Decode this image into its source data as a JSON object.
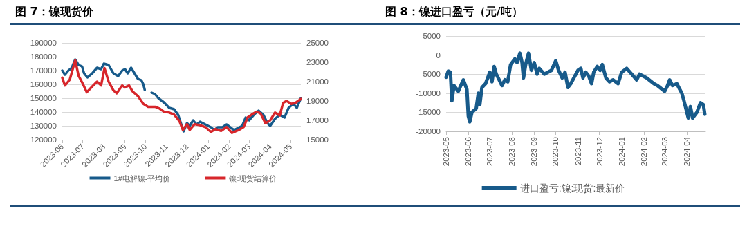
{
  "chart_data": [
    {
      "type": "line",
      "title": "图 7：镍现货价",
      "legend": "bottom",
      "grid": "y",
      "marker": "none",
      "xlim": [
        "2023-06-01",
        "2024-05-16"
      ],
      "xticks": [
        "2023-06",
        "2023-07",
        "2023-08",
        "2023-09",
        "2023-10",
        "2023-11",
        "2023-12",
        "2024-01",
        "2024-02",
        "2024-03",
        "2024-04",
        "2024-05"
      ],
      "ylim": [
        120000,
        190000
      ],
      "yticks": [
        120000,
        130000,
        140000,
        150000,
        160000,
        170000,
        180000,
        190000
      ],
      "y2lim": [
        15000,
        25000
      ],
      "y2ticks": [
        15000,
        17000,
        19000,
        21000,
        23000,
        25000
      ],
      "series": [
        {
          "name": "1#电解镍-平均价",
          "color": "#175a8a",
          "x": [
            "2023-06-01",
            "2023-06-05",
            "2023-06-10",
            "2023-06-15",
            "2023-06-20",
            "2023-06-25",
            "2023-06-30",
            "2023-07-03",
            "2023-07-08",
            "2023-07-15",
            "2023-07-22",
            "2023-07-28",
            "2023-08-01",
            "2023-08-08",
            "2023-08-15",
            "2023-08-22",
            "2023-08-28",
            "2023-09-01",
            "2023-09-05",
            "2023-09-10",
            "2023-09-15",
            "2023-09-20",
            "2023-09-25",
            "2023-09-28",
            "2023-09-30",
            "2023-10-05",
            "2023-10-10",
            "2023-10-15",
            "2023-10-20",
            "2023-10-28",
            "2023-11-05",
            "2023-11-12",
            "2023-11-18",
            "2023-11-22",
            "2023-11-26",
            "2023-12-01",
            "2023-12-05",
            "2023-12-10",
            "2023-12-15",
            "2023-12-20",
            "2023-12-28",
            "2024-01-05",
            "2024-01-10",
            "2024-01-15",
            "2024-01-22",
            "2024-01-28",
            "2024-02-05",
            "2024-02-08",
            "2024-02-20",
            "2024-02-25",
            "2024-03-01",
            "2024-03-08",
            "2024-03-15",
            "2024-03-22",
            "2024-03-28",
            "2024-04-01",
            "2024-04-08",
            "2024-04-15",
            "2024-04-22",
            "2024-04-28",
            "2024-05-05",
            "2024-05-10",
            "2024-05-16"
          ],
          "values": [
            170000,
            167000,
            170000,
            172000,
            178000,
            174000,
            173000,
            168000,
            165000,
            168000,
            172000,
            171000,
            175000,
            174000,
            168000,
            166000,
            170000,
            171000,
            168000,
            172000,
            168000,
            164000,
            163000,
            160000,
            156000,
            null,
            154000,
            153000,
            150000,
            147000,
            143000,
            142000,
            138000,
            132000,
            126000,
            132000,
            130000,
            134000,
            131000,
            133000,
            131000,
            129000,
            127000,
            129000,
            129000,
            131000,
            128000,
            127000,
            130000,
            136000,
            134000,
            138000,
            141000,
            138000,
            132000,
            130000,
            135000,
            138000,
            136000,
            143000,
            146000,
            143000,
            150000
          ]
        },
        {
          "name": "镍:现货结算价",
          "color": "#d7262b",
          "axis": "y2",
          "x": [
            "2023-06-01",
            "2023-06-05",
            "2023-06-12",
            "2023-06-20",
            "2023-06-25",
            "2023-07-01",
            "2023-07-07",
            "2023-07-15",
            "2023-07-22",
            "2023-07-28",
            "2023-08-02",
            "2023-08-08",
            "2023-08-15",
            "2023-08-20",
            "2023-08-28",
            "2023-09-01",
            "2023-09-07",
            "2023-09-12",
            "2023-09-20",
            "2023-09-28",
            "2023-10-05",
            "2023-10-15",
            "2023-10-22",
            "2023-10-28",
            "2023-11-05",
            "2023-11-12",
            "2023-11-20",
            "2023-11-25",
            "2023-12-01",
            "2023-12-05",
            "2023-12-12",
            "2023-12-20",
            "2023-12-28",
            "2024-01-05",
            "2024-01-12",
            "2024-01-20",
            "2024-01-28",
            "2024-02-05",
            "2024-02-15",
            "2024-02-22",
            "2024-02-28",
            "2024-03-05",
            "2024-03-12",
            "2024-03-18",
            "2024-03-25",
            "2024-04-01",
            "2024-04-08",
            "2024-04-15",
            "2024-04-20",
            "2024-04-25",
            "2024-05-02",
            "2024-05-08",
            "2024-05-16"
          ],
          "values": [
            21400,
            20600,
            21200,
            23200,
            21600,
            20800,
            19900,
            20500,
            21000,
            20600,
            22400,
            21000,
            20100,
            19800,
            20600,
            20400,
            20600,
            20000,
            19500,
            18700,
            18400,
            18400,
            18200,
            17900,
            17800,
            17600,
            16900,
            16000,
            16600,
            16000,
            16600,
            16500,
            16300,
            15800,
            16100,
            15900,
            16300,
            15700,
            16000,
            16300,
            17300,
            17600,
            17900,
            17700,
            16700,
            17000,
            17800,
            17500,
            18800,
            19000,
            18700,
            18800,
            19200
          ]
        }
      ]
    },
    {
      "type": "line",
      "title": "图 8：镍进口盈亏（元/吨）",
      "legend": "bottom",
      "grid": "y",
      "marker": "none",
      "xlim": [
        "2023-05-01",
        "2024-04-27"
      ],
      "xticks": [
        "2023-05",
        "2023-06",
        "2023-07",
        "2023-08",
        "2023-09",
        "2023-10",
        "2023-11",
        "2023-12",
        "2024-01",
        "2024-02",
        "2024-03",
        "2024-04"
      ],
      "ylim": [
        -20000,
        5000
      ],
      "yticks": [
        -20000,
        -15000,
        -10000,
        -5000,
        0,
        5000
      ],
      "series": [
        {
          "name": "进口盈亏:镍:现货:最新价",
          "color": "#175a8a",
          "x": [
            "2023-05-01",
            "2023-05-04",
            "2023-05-07",
            "2023-05-09",
            "2023-05-12",
            "2023-05-18",
            "2023-05-25",
            "2023-05-30",
            "2023-06-01",
            "2023-06-03",
            "2023-06-06",
            "2023-06-12",
            "2023-06-15",
            "2023-06-17",
            "2023-06-20",
            "2023-06-25",
            "2023-07-01",
            "2023-07-04",
            "2023-07-07",
            "2023-07-10",
            "2023-07-14",
            "2023-07-18",
            "2023-07-22",
            "2023-07-26",
            "2023-07-30",
            "2023-08-05",
            "2023-08-08",
            "2023-08-12",
            "2023-08-15",
            "2023-08-17",
            "2023-08-20",
            "2023-08-24",
            "2023-08-28",
            "2023-09-01",
            "2023-09-05",
            "2023-09-08",
            "2023-09-15",
            "2023-09-25",
            "2023-10-01",
            "2023-10-05",
            "2023-10-10",
            "2023-10-14",
            "2023-10-18",
            "2023-10-22",
            "2023-11-01",
            "2023-11-05",
            "2023-11-08",
            "2023-11-12",
            "2023-11-16",
            "2023-11-20",
            "2023-11-23",
            "2023-11-28",
            "2023-12-02",
            "2023-12-05",
            "2023-12-10",
            "2023-12-15",
            "2023-12-20",
            "2023-12-27",
            "2024-01-01",
            "2024-01-08",
            "2024-01-15",
            "2024-01-22",
            "2024-01-26",
            "2024-02-05",
            "2024-02-15",
            "2024-02-20",
            "2024-03-01",
            "2024-03-05",
            "2024-03-08",
            "2024-03-12",
            "2024-03-18",
            "2024-03-25",
            "2024-03-28",
            "2024-04-01",
            "2024-04-03",
            "2024-04-06",
            "2024-04-09",
            "2024-04-15",
            "2024-04-20",
            "2024-04-24",
            "2024-04-26"
          ],
          "values": [
            -5800,
            -4200,
            -4500,
            -12000,
            -8000,
            -9500,
            -6500,
            -9000,
            -16000,
            -17500,
            -15000,
            -14000,
            -10000,
            -13000,
            -8500,
            -7500,
            -4500,
            -7000,
            -3000,
            -5000,
            -6500,
            -8000,
            -6500,
            -7000,
            -2500,
            -1000,
            -2000,
            500,
            -2000,
            -6000,
            -2500,
            500,
            -4000,
            -2000,
            -5000,
            -3500,
            -5000,
            -4000,
            -1500,
            -4000,
            -6000,
            -4500,
            -8500,
            -7500,
            -4000,
            -3500,
            -6000,
            -4500,
            -5500,
            -7500,
            -4500,
            -3000,
            -4000,
            -2500,
            -6000,
            -7000,
            -6500,
            -7500,
            -4500,
            -3500,
            -5000,
            -6500,
            -5000,
            -6000,
            -7500,
            -8000,
            -9500,
            -8000,
            -6500,
            -8000,
            -7500,
            -10000,
            -12000,
            -15000,
            -16500,
            -13500,
            -16500,
            -15000,
            -12500,
            -13000,
            -15500
          ]
        }
      ]
    }
  ]
}
